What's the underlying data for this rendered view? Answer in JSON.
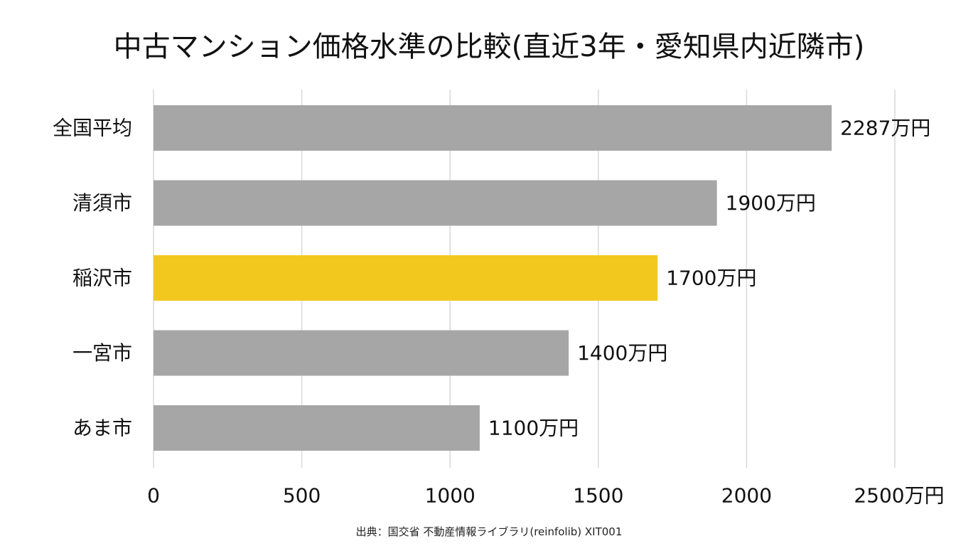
{
  "chart_data": {
    "type": "bar",
    "orientation": "horizontal",
    "title": "中古マンション価格水準の比較(直近3年・愛知県内近隣市)",
    "categories": [
      "全国平均",
      "清須市",
      "稲沢市",
      "一宮市",
      "あま市"
    ],
    "values": [
      2287,
      1900,
      1700,
      1400,
      1100
    ],
    "value_labels": [
      "2287万円",
      "1900万円",
      "1700万円",
      "1400万円",
      "1100万円"
    ],
    "highlight_index": 2,
    "colors": {
      "default_bar": "#a6a6a6",
      "highlight_bar": "#f2c81f",
      "grid": "#d9d9d9"
    },
    "xlim": [
      0,
      2500
    ],
    "x_ticks": [
      0,
      500,
      1000,
      1500,
      2000,
      2500
    ],
    "x_tick_labels": [
      "0",
      "500",
      "1000",
      "1500",
      "2000",
      "2500万円"
    ],
    "grid": true,
    "xlabel": "",
    "ylabel": "",
    "source": "出典：国交省 不動産情報ライブラリ(reinfolib) XIT001"
  }
}
